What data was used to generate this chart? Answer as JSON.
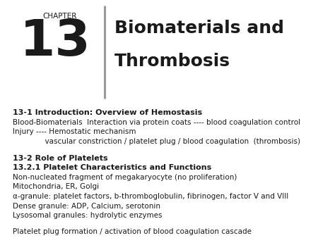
{
  "background_color": "#ffffff",
  "chapter_label": "CHAPTER",
  "chapter_number": "13",
  "title_line1": "Biomaterials and",
  "title_line2": "Thrombosis",
  "section1_heading": "13-1 Introduction: Overview of Hemostasis",
  "section1_lines": [
    "Blood-Biomaterials  Interaction via protein coats ---- blood coagulation control",
    "Injury ---- Hemostatic mechanism",
    "              vascular constriction / platelet plug / blood coagulation  (thrombosis)"
  ],
  "section2_heading1": "13-2 Role of Platelets",
  "section2_heading2": "13.2.1 Platelet Characteristics and Functions",
  "section2_lines": [
    "Non-nucleated fragment of megakaryocyte (no proliferation)",
    "Mitochondria, ER, Golgi",
    "α-granule: platelet factors, b-thromboglobulin, fibrinogen, factor V and VIII",
    "Dense granule: ADP, Calcium, serotonin",
    "Lysosomal granules: hydrolytic enzymes"
  ],
  "section3_line": "Platelet plug formation / activation of blood coagulation cascade",
  "text_color": "#1a1a1a",
  "divider_color": "#999999",
  "header_bg": "#f5f5f5"
}
